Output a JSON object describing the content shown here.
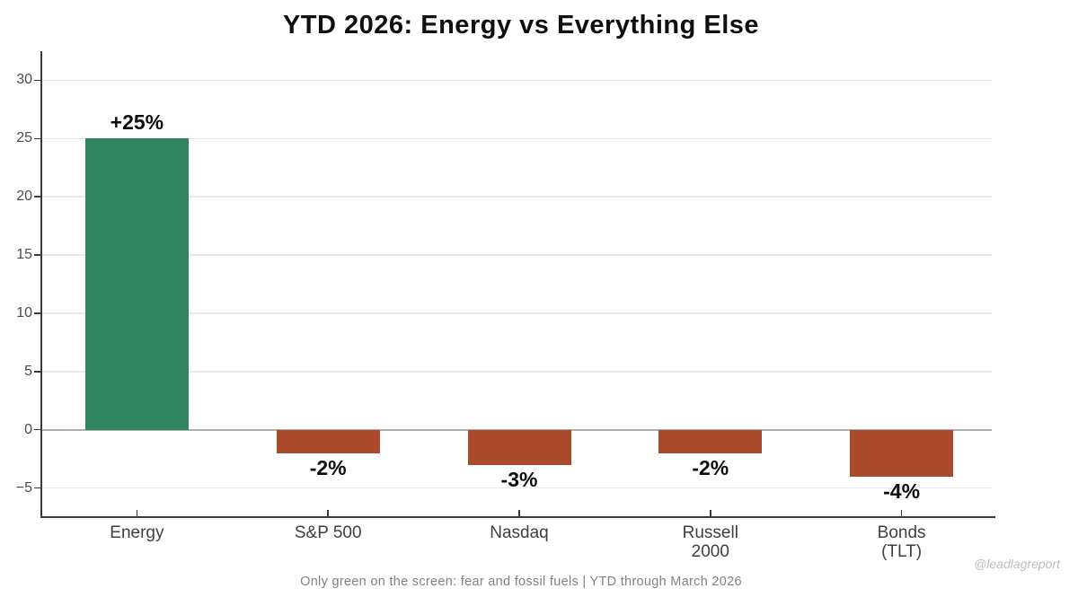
{
  "title": "YTD 2026: Energy vs Everything Else",
  "caption": "Only green on the screen: fear and fossil fuels  |  YTD through March 2026",
  "watermark": "@leadlagreport",
  "colors": {
    "positive_bar": "#2e8560",
    "negative_bar": "#a94a2b",
    "grid": "#e8e8e8",
    "zero_line": "#aeaeae",
    "axis": "#3a3a3a"
  },
  "chart_data": {
    "type": "bar",
    "title": "YTD 2026: Energy vs Everything Else",
    "categories": [
      "Energy",
      "S&P 500",
      "Nasdaq",
      "Russell\n2000",
      "Bonds\n(TLT)"
    ],
    "values": [
      25,
      -2,
      -3,
      -2,
      -4
    ],
    "value_labels": [
      "+25%",
      "-2%",
      "-3%",
      "-2%",
      "-4%"
    ],
    "bar_colors": [
      "#2e8560",
      "#a94a2b",
      "#a94a2b",
      "#a94a2b",
      "#a94a2b"
    ],
    "xlabel": "",
    "ylabel": "",
    "ylim": [
      -7.5,
      32.5
    ],
    "yticks": [
      -5,
      0,
      5,
      10,
      15,
      20,
      25,
      30
    ],
    "grid": "horizontal",
    "legend": "none"
  }
}
